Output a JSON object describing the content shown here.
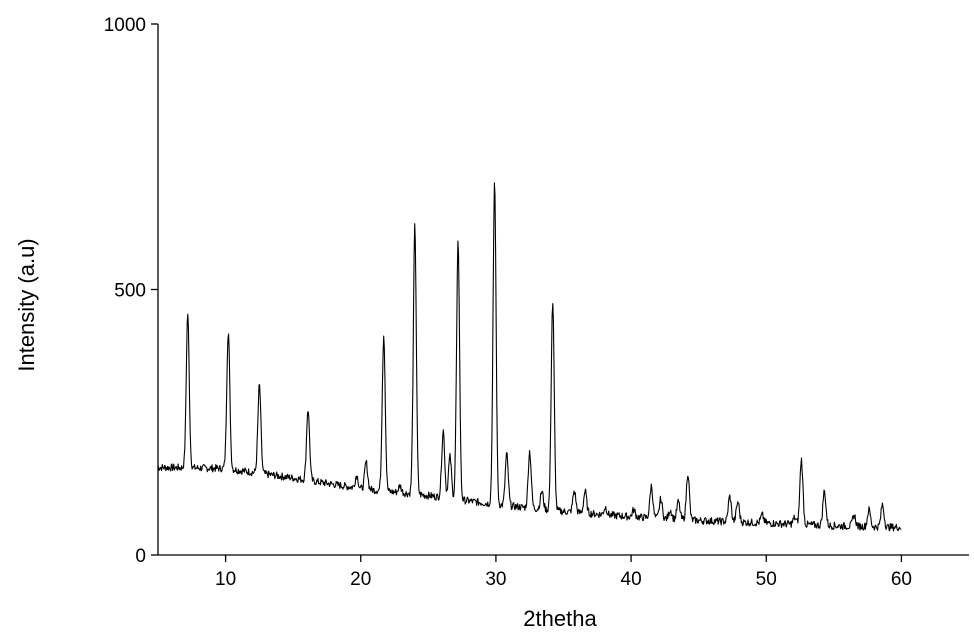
{
  "chart_data": {
    "type": "line",
    "title": "",
    "xlabel": "2thetha",
    "ylabel": "Intensity (a.u)",
    "xlim": [
      5,
      65
    ],
    "ylim": [
      0,
      1000
    ],
    "x_ticks": [
      10,
      20,
      30,
      40,
      50,
      60
    ],
    "y_ticks": [
      0,
      500,
      1000
    ],
    "x_range": [
      5,
      60
    ],
    "grid": false,
    "line_color": "#000000",
    "baseline": [
      [
        5,
        165
      ],
      [
        10,
        163
      ],
      [
        15,
        145
      ],
      [
        20,
        125
      ],
      [
        25,
        112
      ],
      [
        30,
        95
      ],
      [
        35,
        82
      ],
      [
        40,
        72
      ],
      [
        45,
        65
      ],
      [
        50,
        60
      ],
      [
        55,
        55
      ],
      [
        60,
        52
      ]
    ],
    "peaks": [
      {
        "x": 7.2,
        "y": 455
      },
      {
        "x": 10.2,
        "y": 420
      },
      {
        "x": 12.5,
        "y": 320
      },
      {
        "x": 16.1,
        "y": 275
      },
      {
        "x": 19.7,
        "y": 150
      },
      {
        "x": 20.4,
        "y": 175
      },
      {
        "x": 21.7,
        "y": 415
      },
      {
        "x": 22.9,
        "y": 130
      },
      {
        "x": 24.0,
        "y": 620
      },
      {
        "x": 26.1,
        "y": 235
      },
      {
        "x": 26.6,
        "y": 185
      },
      {
        "x": 27.2,
        "y": 590
      },
      {
        "x": 29.9,
        "y": 700
      },
      {
        "x": 30.8,
        "y": 190
      },
      {
        "x": 32.5,
        "y": 195
      },
      {
        "x": 33.4,
        "y": 120
      },
      {
        "x": 34.2,
        "y": 475
      },
      {
        "x": 35.8,
        "y": 120
      },
      {
        "x": 36.6,
        "y": 120
      },
      {
        "x": 38.1,
        "y": 90
      },
      {
        "x": 40.2,
        "y": 85
      },
      {
        "x": 41.5,
        "y": 130
      },
      {
        "x": 42.2,
        "y": 105
      },
      {
        "x": 42.9,
        "y": 85
      },
      {
        "x": 43.5,
        "y": 100
      },
      {
        "x": 44.2,
        "y": 155
      },
      {
        "x": 47.3,
        "y": 110
      },
      {
        "x": 47.9,
        "y": 100
      },
      {
        "x": 49.7,
        "y": 75
      },
      {
        "x": 52.1,
        "y": 70
      },
      {
        "x": 52.6,
        "y": 180
      },
      {
        "x": 54.3,
        "y": 120
      },
      {
        "x": 56.5,
        "y": 75
      },
      {
        "x": 57.6,
        "y": 85
      },
      {
        "x": 58.6,
        "y": 95
      }
    ]
  }
}
